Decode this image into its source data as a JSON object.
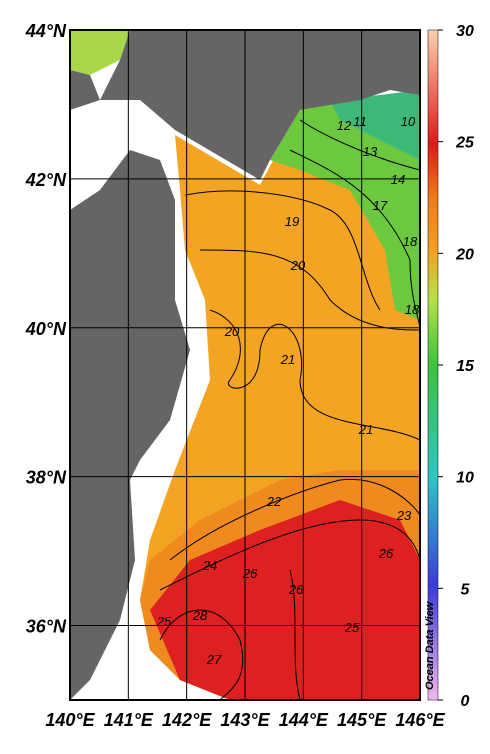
{
  "map": {
    "lat_ticks": [
      {
        "value": 44,
        "label": "44°N"
      },
      {
        "value": 42,
        "label": "42°N"
      },
      {
        "value": 40,
        "label": "40°N"
      },
      {
        "value": 38,
        "label": "38°N"
      },
      {
        "value": 36,
        "label": "36°N"
      }
    ],
    "lon_ticks": [
      {
        "value": 140,
        "label": "140°E"
      },
      {
        "value": 141,
        "label": "141°E"
      },
      {
        "value": 142,
        "label": "142°E"
      },
      {
        "value": 143,
        "label": "143°E"
      },
      {
        "value": 144,
        "label": "144°E"
      },
      {
        "value": 145,
        "label": "145°E"
      },
      {
        "value": 146,
        "label": "146°E"
      }
    ],
    "latlim": [
      35,
      44
    ],
    "lonlim": [
      140,
      146
    ],
    "colorbar": {
      "lim": [
        0,
        30
      ],
      "ticks": [
        0,
        5,
        10,
        15,
        20,
        25,
        30
      ]
    },
    "contour_labels": [
      19,
      20,
      20,
      21,
      21,
      22,
      23,
      24,
      26,
      26,
      26,
      28,
      25,
      27,
      25,
      11,
      12,
      10,
      13,
      14,
      17,
      18,
      18
    ],
    "watermark": "Ocean Data View"
  }
}
